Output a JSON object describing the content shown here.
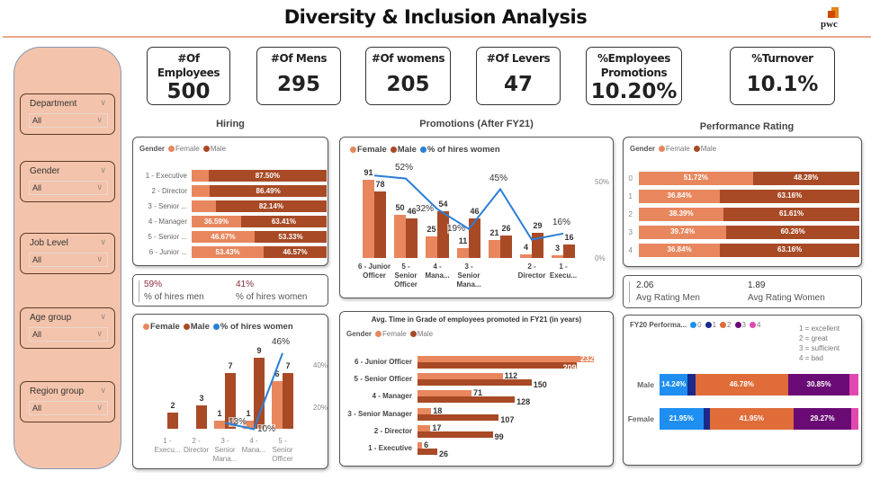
{
  "header": {
    "title": "Diversity & Inclusion Analysis",
    "logo_text": "pwc"
  },
  "filters": [
    {
      "label": "Department",
      "value": "All"
    },
    {
      "label": "Gender",
      "value": "All"
    },
    {
      "label": "Job Level",
      "value": "All"
    },
    {
      "label": "Age group",
      "value": "All"
    },
    {
      "label": "Region group",
      "value": "All"
    }
  ],
  "kpis": [
    {
      "title": "#Of Employees",
      "value": "500"
    },
    {
      "title": "#Of Mens",
      "value": "295"
    },
    {
      "title": "#Of womens",
      "value": "205"
    },
    {
      "title": "#Of Levers",
      "value": "47"
    },
    {
      "title": "%Employees Promotions",
      "value": "10.20%"
    },
    {
      "title": "%Turnover",
      "value": "10.1%"
    }
  ],
  "sections": {
    "hiring": "Hiring",
    "promotions": "Promotions (After FY21)",
    "performance": "Performance Rating"
  },
  "colors": {
    "female": "#e8875e",
    "male": "#a84a26",
    "line": "#2a7fd6",
    "panel": "#f3c3ab"
  },
  "hiring_summary": {
    "men_value": "59%",
    "men_label": "% of hires men",
    "women_value": "41%",
    "women_label": "% of hires women"
  },
  "rating_summary": {
    "men_value": "2.06",
    "men_label": "Avg Rating Men",
    "women_value": "1.89",
    "women_label": "Avg Rating Women"
  },
  "chart_data": [
    {
      "id": "hiring",
      "type": "bar",
      "orientation": "horizontal",
      "stacked": "100%",
      "legend_title": "Gender",
      "legend": [
        "Female",
        "Male"
      ],
      "categories": [
        "1 - Executive",
        "2 - Director",
        "3 - Senior ...",
        "4 - Manager",
        "5 - Senior ...",
        "6 - Junior ..."
      ],
      "series": [
        {
          "name": "Female",
          "values": [
            12.5,
            13.51,
            17.86,
            36.59,
            46.67,
            53.43
          ],
          "labels": [
            "",
            "",
            "",
            "36.59%",
            "46.67%",
            "53.43%"
          ]
        },
        {
          "name": "Male",
          "values": [
            87.5,
            86.49,
            82.14,
            63.41,
            53.33,
            46.57
          ],
          "labels": [
            "87.50%",
            "86.49%",
            "82.14%",
            "63.41%",
            "53.33%",
            "46.57%"
          ]
        }
      ]
    },
    {
      "id": "promotions",
      "type": "bar+line",
      "legend": [
        "Female",
        "Male",
        "% of hires women"
      ],
      "categories": [
        "6 - Junior Officer",
        "5 - Senior Officer",
        "4 - Mana...",
        "3 - Senior Mana...",
        "",
        "2 - Director",
        "1 - Execu..."
      ],
      "series": [
        {
          "name": "Female",
          "values": [
            91,
            50,
            25,
            11,
            21,
            4,
            3
          ]
        },
        {
          "name": "Male",
          "values": [
            78,
            46,
            54,
            46,
            26,
            29,
            16
          ]
        },
        {
          "name": "% of hires women",
          "values": [
            54,
            52,
            32,
            19,
            45,
            12,
            16
          ],
          "labels": [
            "",
            "52%",
            "32%",
            "19%",
            "45%",
            "",
            "16%"
          ]
        }
      ],
      "y2_ticks": [
        "50%",
        "0%"
      ]
    },
    {
      "id": "performance",
      "type": "bar",
      "orientation": "horizontal",
      "stacked": "100%",
      "legend_title": "Gender",
      "legend": [
        "Female",
        "Male"
      ],
      "categories": [
        "0",
        "1",
        "2",
        "3",
        "4"
      ],
      "series": [
        {
          "name": "Female",
          "values": [
            51.72,
            36.84,
            38.39,
            39.74,
            36.84
          ]
        },
        {
          "name": "Male",
          "values": [
            48.28,
            63.16,
            61.61,
            60.26,
            63.16
          ]
        }
      ]
    },
    {
      "id": "hires_by_level",
      "type": "bar+line",
      "legend": [
        "Female",
        "Male",
        "% of hires women"
      ],
      "categories": [
        "1 - Execu...",
        "2 - Director",
        "3 - Senior Mana...",
        "4 - Mana...",
        "5 - Senior Officer"
      ],
      "series": [
        {
          "name": "Female",
          "values": [
            0,
            0,
            1,
            1,
            6
          ],
          "labels": [
            "",
            "",
            "1",
            "1",
            "6"
          ]
        },
        {
          "name": "Male",
          "values": [
            2,
            3,
            7,
            9,
            7
          ]
        },
        {
          "name": "% of hires women",
          "values": [
            null,
            null,
            13,
            10,
            46
          ],
          "labels": [
            "",
            "",
            "13%",
            "10%",
            "46%"
          ]
        }
      ],
      "y2_ticks": [
        "40%",
        "20%"
      ]
    },
    {
      "id": "avg_time",
      "type": "bar",
      "orientation": "horizontal",
      "title": "Avg. Time in Grade of employees promoted in FY21 (in years)",
      "legend_title": "Gender",
      "legend": [
        "Female",
        "Male"
      ],
      "categories": [
        "6 - Junior Officer",
        "5 - Senior Officer",
        "4 - Manager",
        "3 - Senior Manager",
        "2 - Director",
        "1 - Executive"
      ],
      "series": [
        {
          "name": "Female",
          "values": [
            232,
            112,
            71,
            18,
            17,
            6
          ]
        },
        {
          "name": "Male",
          "values": [
            209,
            150,
            128,
            107,
            99,
            26
          ]
        }
      ]
    },
    {
      "id": "fy20",
      "type": "bar",
      "orientation": "horizontal",
      "stacked": "100%",
      "legend_title": "FY20 Performa...",
      "legend": [
        "0",
        "1",
        "2",
        "3",
        "4"
      ],
      "legend_colors": [
        "#1e8ff0",
        "#1a2a8a",
        "#e06c3a",
        "#6a0b75",
        "#e048b0"
      ],
      "notes": [
        "1 = excellent",
        "2 = great",
        "3 = sufficient",
        "4 = bad"
      ],
      "categories": [
        "Male",
        "Female"
      ],
      "series": [
        {
          "name": "0",
          "values": [
            14.24,
            21.95
          ]
        },
        {
          "name": "1",
          "values": [
            3.7,
            3.4
          ]
        },
        {
          "name": "2",
          "values": [
            46.78,
            41.95
          ]
        },
        {
          "name": "3",
          "values": [
            30.85,
            29.27
          ]
        },
        {
          "name": "4",
          "values": [
            4.43,
            3.43
          ]
        }
      ],
      "labels": [
        [
          "14.24%",
          "",
          "46.78%",
          "30.85%",
          ""
        ],
        [
          "21.95%",
          "",
          "41.95%",
          "29.27%",
          ""
        ]
      ]
    }
  ]
}
